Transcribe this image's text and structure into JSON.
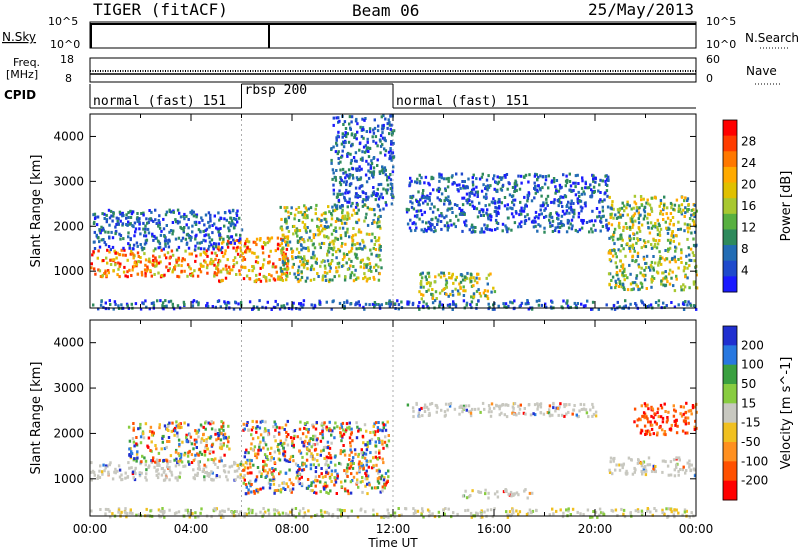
{
  "header": {
    "radar": "TIGER (fitACF)",
    "beam": "Beam 06",
    "date": "25/May/2013"
  },
  "nsky_panel": {
    "left_label": "N.Sky",
    "left_ticks": [
      "10^5",
      "10^0"
    ],
    "right_label": "N.Search",
    "right_ticks": [
      "10^5",
      "10^0"
    ]
  },
  "freq_panel": {
    "left_label_line1": "Freq.",
    "left_label_line2": "[MHz]",
    "left_ticks": [
      "18",
      "8"
    ],
    "right_label": "Nave",
    "right_ticks": [
      "60",
      "0"
    ]
  },
  "cpid_panel": {
    "label": "CPID",
    "segments": [
      {
        "start_hour": 0,
        "end_hour": 6,
        "label": "normal (fast) 151"
      },
      {
        "start_hour": 6,
        "end_hour": 12,
        "label": "rbsp 200"
      },
      {
        "start_hour": 12,
        "end_hour": 24,
        "label": "normal (fast) 151"
      }
    ]
  },
  "chart_data": [
    {
      "type": "heatmap",
      "name": "power",
      "ylabel": "Slant Range [km]",
      "ylim": [
        180,
        4500
      ],
      "yticks": [
        "1000",
        "2000",
        "3000",
        "4000"
      ],
      "xlim": [
        0,
        24
      ],
      "colorbar": {
        "label": "Power [dB]",
        "ticks": [
          "28",
          "24",
          "20",
          "16",
          "12",
          "8",
          "4"
        ],
        "colors": [
          "#ff0000",
          "#ff3c00",
          "#ff7800",
          "#ffaa00",
          "#e0c000",
          "#a8c830",
          "#58b040",
          "#2e8a5c",
          "#226cb4",
          "#1f4acc",
          "#1a1aff"
        ]
      },
      "echo_regions": [
        {
          "t0": 0.0,
          "t1": 5.0,
          "r0": 900,
          "r1": 1500,
          "level": "high"
        },
        {
          "t0": 5.0,
          "t1": 7.8,
          "r0": 800,
          "r1": 1800,
          "level": "high"
        },
        {
          "t0": 0.0,
          "t1": 6.0,
          "r0": 1500,
          "r1": 2400,
          "level": "low"
        },
        {
          "t0": 7.5,
          "t1": 11.5,
          "r0": 800,
          "r1": 2500,
          "level": "mid"
        },
        {
          "t0": 9.5,
          "t1": 12.0,
          "r0": 2400,
          "r1": 4500,
          "level": "low"
        },
        {
          "t0": 13.0,
          "t1": 16.0,
          "r0": 400,
          "r1": 1000,
          "level": "mid"
        },
        {
          "t0": 12.5,
          "t1": 20.5,
          "r0": 1900,
          "r1": 3200,
          "level": "low"
        },
        {
          "t0": 20.5,
          "t1": 24.0,
          "r0": 600,
          "r1": 2700,
          "level": "mid"
        },
        {
          "t0": 0.0,
          "t1": 24.0,
          "r0": 180,
          "r1": 380,
          "level": "low"
        }
      ]
    },
    {
      "type": "heatmap",
      "name": "velocity",
      "ylabel": "Slant Range [km]",
      "ylim": [
        180,
        4500
      ],
      "yticks": [
        "1000",
        "2000",
        "3000",
        "4000"
      ],
      "xlim": [
        0,
        24
      ],
      "xticks": [
        "00:00",
        "04:00",
        "08:00",
        "12:00",
        "16:00",
        "20:00",
        "00:00"
      ],
      "xlabel": "Time UT",
      "colorbar": {
        "label": "Velocity [m s^-1]",
        "ticks": [
          "200",
          "100",
          "50",
          "15",
          "-15",
          "-50",
          "-100",
          "-200"
        ],
        "colors": [
          "#2030d0",
          "#2878e0",
          "#3aa040",
          "#88cc40",
          "#c8c8c0",
          "#f0c020",
          "#ff9020",
          "#ff5000",
          "#ff0000"
        ]
      },
      "echo_regions": [
        {
          "t0": 0.0,
          "t1": 6.0,
          "r0": 1000,
          "r1": 1400,
          "level": "grey"
        },
        {
          "t0": 1.5,
          "t1": 5.5,
          "r0": 1400,
          "r1": 2300,
          "level": "mixed"
        },
        {
          "t0": 6.0,
          "t1": 11.8,
          "r0": 700,
          "r1": 2300,
          "level": "mixed"
        },
        {
          "t0": 14.5,
          "t1": 17.5,
          "r0": 600,
          "r1": 800,
          "level": "grey"
        },
        {
          "t0": 12.5,
          "t1": 20.0,
          "r0": 2400,
          "r1": 2700,
          "level": "grey"
        },
        {
          "t0": 21.5,
          "t1": 24.0,
          "r0": 2000,
          "r1": 2700,
          "level": "red"
        },
        {
          "t0": 20.5,
          "t1": 24.0,
          "r0": 1100,
          "r1": 1500,
          "level": "grey"
        },
        {
          "t0": 0.0,
          "t1": 24.0,
          "r0": 180,
          "r1": 380,
          "level": "ground"
        }
      ]
    }
  ]
}
